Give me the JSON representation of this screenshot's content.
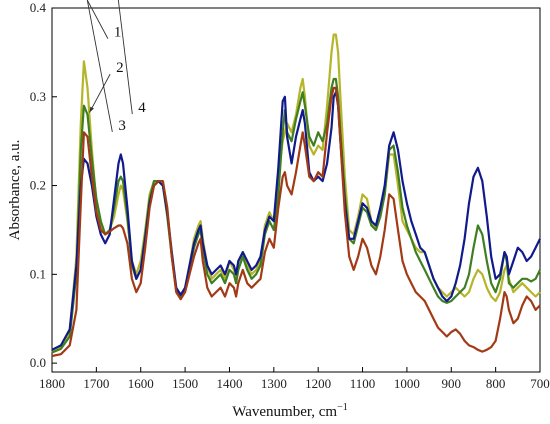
{
  "chart_data": {
    "type": "line",
    "xlabel": "Wavenumber, cm",
    "xlabel_sup": "−1",
    "ylabel": "Absorbance, a.u.",
    "xlim": [
      1800,
      700
    ],
    "ylim": [
      -0.01,
      0.4
    ],
    "x_reversed": true,
    "grid": false,
    "x_ticks": [
      1800,
      1700,
      1600,
      1500,
      1400,
      1300,
      1200,
      1100,
      1000,
      900,
      800,
      700
    ],
    "y_ticks": [
      0.0,
      0.1,
      0.2,
      0.3,
      0.4
    ],
    "y_tick_labels": [
      "0.0",
      "0.1",
      "0.2",
      "0.3",
      "0.4"
    ],
    "x": [
      1800,
      1780,
      1760,
      1745,
      1735,
      1728,
      1720,
      1710,
      1700,
      1690,
      1680,
      1670,
      1660,
      1650,
      1645,
      1640,
      1630,
      1620,
      1610,
      1600,
      1590,
      1580,
      1570,
      1560,
      1550,
      1540,
      1530,
      1520,
      1510,
      1500,
      1490,
      1480,
      1470,
      1465,
      1460,
      1450,
      1440,
      1430,
      1420,
      1410,
      1400,
      1390,
      1385,
      1380,
      1370,
      1360,
      1350,
      1340,
      1330,
      1320,
      1310,
      1300,
      1290,
      1280,
      1275,
      1270,
      1260,
      1250,
      1240,
      1235,
      1230,
      1220,
      1210,
      1200,
      1190,
      1180,
      1170,
      1165,
      1160,
      1155,
      1150,
      1140,
      1130,
      1120,
      1110,
      1100,
      1090,
      1080,
      1070,
      1060,
      1050,
      1040,
      1030,
      1020,
      1010,
      1000,
      990,
      980,
      970,
      960,
      950,
      940,
      930,
      920,
      910,
      900,
      890,
      880,
      870,
      860,
      850,
      840,
      830,
      820,
      810,
      800,
      790,
      780,
      775,
      770,
      760,
      750,
      740,
      730,
      720,
      710,
      700
    ],
    "series": [
      {
        "name": "1",
        "color": "#b5b52a",
        "values": [
          0.012,
          0.018,
          0.035,
          0.12,
          0.27,
          0.34,
          0.31,
          0.24,
          0.18,
          0.155,
          0.145,
          0.15,
          0.165,
          0.19,
          0.2,
          0.195,
          0.16,
          0.115,
          0.1,
          0.115,
          0.15,
          0.19,
          0.205,
          0.205,
          0.2,
          0.17,
          0.12,
          0.085,
          0.075,
          0.085,
          0.11,
          0.14,
          0.155,
          0.16,
          0.14,
          0.11,
          0.095,
          0.1,
          0.105,
          0.095,
          0.115,
          0.105,
          0.095,
          0.11,
          0.125,
          0.11,
          0.1,
          0.105,
          0.115,
          0.155,
          0.17,
          0.16,
          0.21,
          0.25,
          0.26,
          0.27,
          0.26,
          0.28,
          0.31,
          0.32,
          0.3,
          0.245,
          0.235,
          0.245,
          0.24,
          0.29,
          0.35,
          0.37,
          0.37,
          0.35,
          0.3,
          0.21,
          0.15,
          0.145,
          0.165,
          0.19,
          0.185,
          0.16,
          0.15,
          0.165,
          0.19,
          0.235,
          0.235,
          0.2,
          0.16,
          0.15,
          0.14,
          0.13,
          0.125,
          0.125,
          0.11,
          0.095,
          0.085,
          0.08,
          0.075,
          0.08,
          0.085,
          0.08,
          0.075,
          0.08,
          0.095,
          0.105,
          0.1,
          0.085,
          0.075,
          0.07,
          0.08,
          0.105,
          0.11,
          0.095,
          0.08,
          0.085,
          0.09,
          0.085,
          0.08,
          0.075,
          0.08
        ]
      },
      {
        "name": "2",
        "color": "#3f7f22",
        "values": [
          0.012,
          0.016,
          0.03,
          0.1,
          0.24,
          0.29,
          0.28,
          0.23,
          0.185,
          0.16,
          0.145,
          0.15,
          0.175,
          0.205,
          0.21,
          0.205,
          0.165,
          0.11,
          0.095,
          0.105,
          0.145,
          0.185,
          0.205,
          0.205,
          0.2,
          0.165,
          0.12,
          0.082,
          0.075,
          0.082,
          0.105,
          0.13,
          0.145,
          0.15,
          0.13,
          0.1,
          0.09,
          0.095,
          0.1,
          0.09,
          0.105,
          0.1,
          0.09,
          0.105,
          0.12,
          0.105,
          0.095,
          0.1,
          0.11,
          0.145,
          0.16,
          0.15,
          0.19,
          0.26,
          0.285,
          0.26,
          0.25,
          0.275,
          0.295,
          0.305,
          0.29,
          0.255,
          0.245,
          0.26,
          0.25,
          0.27,
          0.31,
          0.32,
          0.32,
          0.3,
          0.26,
          0.19,
          0.14,
          0.135,
          0.155,
          0.175,
          0.17,
          0.155,
          0.15,
          0.165,
          0.19,
          0.24,
          0.245,
          0.215,
          0.175,
          0.155,
          0.14,
          0.125,
          0.115,
          0.105,
          0.095,
          0.085,
          0.075,
          0.07,
          0.068,
          0.07,
          0.075,
          0.08,
          0.085,
          0.1,
          0.13,
          0.155,
          0.145,
          0.115,
          0.09,
          0.08,
          0.095,
          0.125,
          0.115,
          0.09,
          0.085,
          0.09,
          0.095,
          0.095,
          0.092,
          0.095,
          0.105
        ]
      },
      {
        "name": "3",
        "color": "#101a8c",
        "values": [
          0.015,
          0.02,
          0.038,
          0.11,
          0.2,
          0.23,
          0.225,
          0.2,
          0.165,
          0.145,
          0.135,
          0.145,
          0.185,
          0.225,
          0.235,
          0.225,
          0.175,
          0.115,
          0.095,
          0.105,
          0.14,
          0.18,
          0.2,
          0.205,
          0.2,
          0.17,
          0.125,
          0.085,
          0.077,
          0.085,
          0.11,
          0.135,
          0.15,
          0.155,
          0.135,
          0.11,
          0.1,
          0.105,
          0.11,
          0.1,
          0.115,
          0.11,
          0.1,
          0.115,
          0.125,
          0.115,
          0.105,
          0.11,
          0.12,
          0.15,
          0.165,
          0.16,
          0.22,
          0.295,
          0.3,
          0.255,
          0.225,
          0.255,
          0.275,
          0.285,
          0.27,
          0.215,
          0.205,
          0.21,
          0.205,
          0.225,
          0.265,
          0.3,
          0.305,
          0.29,
          0.25,
          0.18,
          0.14,
          0.14,
          0.16,
          0.18,
          0.175,
          0.16,
          0.155,
          0.175,
          0.2,
          0.245,
          0.26,
          0.24,
          0.205,
          0.18,
          0.16,
          0.145,
          0.13,
          0.125,
          0.11,
          0.095,
          0.085,
          0.075,
          0.07,
          0.075,
          0.09,
          0.11,
          0.14,
          0.18,
          0.21,
          0.22,
          0.205,
          0.165,
          0.12,
          0.095,
          0.1,
          0.125,
          0.12,
          0.1,
          0.115,
          0.13,
          0.125,
          0.115,
          0.12,
          0.13,
          0.14
        ]
      },
      {
        "name": "4",
        "color": "#a23a16",
        "values": [
          0.008,
          0.01,
          0.02,
          0.06,
          0.18,
          0.26,
          0.255,
          0.21,
          0.17,
          0.15,
          0.145,
          0.148,
          0.152,
          0.155,
          0.155,
          0.152,
          0.135,
          0.095,
          0.08,
          0.09,
          0.13,
          0.175,
          0.2,
          0.205,
          0.205,
          0.175,
          0.12,
          0.08,
          0.072,
          0.08,
          0.1,
          0.12,
          0.135,
          0.14,
          0.115,
          0.085,
          0.075,
          0.08,
          0.085,
          0.075,
          0.09,
          0.085,
          0.075,
          0.09,
          0.105,
          0.09,
          0.085,
          0.09,
          0.095,
          0.125,
          0.14,
          0.13,
          0.175,
          0.21,
          0.215,
          0.2,
          0.19,
          0.215,
          0.245,
          0.26,
          0.245,
          0.21,
          0.205,
          0.215,
          0.21,
          0.26,
          0.3,
          0.31,
          0.31,
          0.29,
          0.25,
          0.17,
          0.12,
          0.105,
          0.12,
          0.14,
          0.13,
          0.11,
          0.1,
          0.12,
          0.15,
          0.19,
          0.185,
          0.15,
          0.115,
          0.1,
          0.09,
          0.08,
          0.075,
          0.07,
          0.06,
          0.05,
          0.04,
          0.035,
          0.03,
          0.035,
          0.038,
          0.033,
          0.025,
          0.02,
          0.018,
          0.015,
          0.013,
          0.015,
          0.018,
          0.025,
          0.05,
          0.08,
          0.075,
          0.06,
          0.045,
          0.05,
          0.065,
          0.075,
          0.07,
          0.06,
          0.065
        ]
      }
    ],
    "callouts": [
      {
        "label": "1",
        "series": "1",
        "x_point": 1725,
        "label_x": 1665,
        "label_y": 0.37
      },
      {
        "label": "2",
        "series": "2",
        "x_point": 1720,
        "label_x": 1660,
        "label_y": 0.33
      },
      {
        "label": "3",
        "series": "3",
        "x_point": 1725,
        "label_x": 1655,
        "label_y": 0.265
      },
      {
        "label": "4",
        "series": "4",
        "x_point": 1655,
        "label_x": 1610,
        "label_y": 0.285
      }
    ]
  }
}
